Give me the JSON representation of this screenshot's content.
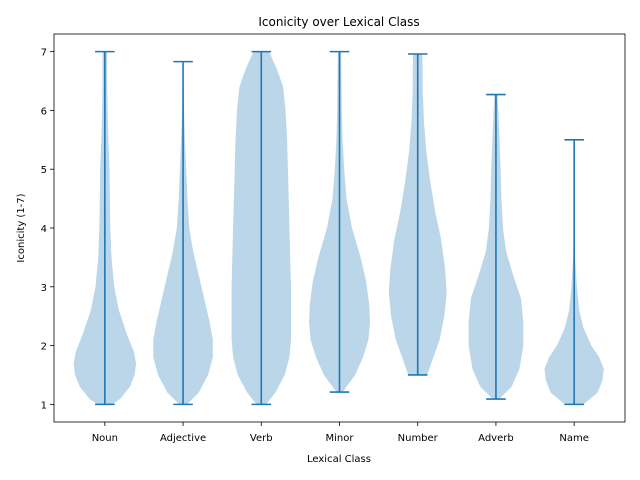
{
  "chart_data": {
    "type": "violin",
    "title": "Iconicity over Lexical Class",
    "xlabel": "Lexical Class",
    "ylabel": "Iconicity (1-7)",
    "ylim": [
      0.7,
      7.3
    ],
    "yticks": [
      1,
      2,
      3,
      4,
      5,
      6,
      7
    ],
    "categories": [
      "Noun",
      "Adjective",
      "Verb",
      "Minor",
      "Number",
      "Adverb",
      "Name"
    ],
    "violin_color": "#b7d4e8",
    "line_color": "#1f77b4",
    "grid": false,
    "series": [
      {
        "category": "Noun",
        "min": 1.0,
        "max": 7.0,
        "profile": [
          [
            1.0,
            0.1
          ],
          [
            1.1,
            0.2
          ],
          [
            1.3,
            0.32
          ],
          [
            1.5,
            0.38
          ],
          [
            1.7,
            0.4
          ],
          [
            1.9,
            0.37
          ],
          [
            2.2,
            0.28
          ],
          [
            2.6,
            0.18
          ],
          [
            3.0,
            0.12
          ],
          [
            3.5,
            0.085
          ],
          [
            4.0,
            0.07
          ],
          [
            4.5,
            0.065
          ],
          [
            5.0,
            0.06
          ],
          [
            5.5,
            0.045
          ],
          [
            6.0,
            0.035
          ],
          [
            6.5,
            0.03
          ],
          [
            7.0,
            0.03
          ]
        ]
      },
      {
        "category": "Adjective",
        "min": 1.0,
        "max": 6.83,
        "profile": [
          [
            1.0,
            0.05
          ],
          [
            1.2,
            0.2
          ],
          [
            1.5,
            0.32
          ],
          [
            1.8,
            0.38
          ],
          [
            2.1,
            0.38
          ],
          [
            2.4,
            0.34
          ],
          [
            2.8,
            0.27
          ],
          [
            3.2,
            0.2
          ],
          [
            3.6,
            0.13
          ],
          [
            4.0,
            0.08
          ],
          [
            4.5,
            0.055
          ],
          [
            5.0,
            0.04
          ],
          [
            5.5,
            0.025
          ],
          [
            6.0,
            0.012
          ],
          [
            6.5,
            0.006
          ],
          [
            6.83,
            0.003
          ]
        ]
      },
      {
        "category": "Verb",
        "min": 1.0,
        "max": 7.0,
        "profile": [
          [
            1.0,
            0.06
          ],
          [
            1.2,
            0.18
          ],
          [
            1.5,
            0.3
          ],
          [
            1.8,
            0.36
          ],
          [
            2.1,
            0.38
          ],
          [
            2.5,
            0.38
          ],
          [
            3.0,
            0.38
          ],
          [
            3.5,
            0.37
          ],
          [
            4.0,
            0.36
          ],
          [
            4.5,
            0.35
          ],
          [
            5.0,
            0.34
          ],
          [
            5.5,
            0.33
          ],
          [
            6.0,
            0.31
          ],
          [
            6.4,
            0.28
          ],
          [
            6.7,
            0.2
          ],
          [
            7.0,
            0.1
          ]
        ]
      },
      {
        "category": "Minor",
        "min": 1.21,
        "max": 7.0,
        "profile": [
          [
            1.21,
            0.04
          ],
          [
            1.5,
            0.2
          ],
          [
            1.8,
            0.3
          ],
          [
            2.1,
            0.37
          ],
          [
            2.4,
            0.39
          ],
          [
            2.7,
            0.38
          ],
          [
            3.1,
            0.34
          ],
          [
            3.5,
            0.27
          ],
          [
            4.0,
            0.16
          ],
          [
            4.5,
            0.09
          ],
          [
            5.0,
            0.06
          ],
          [
            5.5,
            0.04
          ],
          [
            6.0,
            0.03
          ],
          [
            6.5,
            0.025
          ],
          [
            7.0,
            0.02
          ]
        ]
      },
      {
        "category": "Number",
        "min": 1.5,
        "max": 6.96,
        "profile": [
          [
            1.5,
            0.12
          ],
          [
            1.8,
            0.2
          ],
          [
            2.1,
            0.28
          ],
          [
            2.5,
            0.34
          ],
          [
            2.9,
            0.37
          ],
          [
            3.3,
            0.35
          ],
          [
            3.8,
            0.3
          ],
          [
            4.3,
            0.22
          ],
          [
            4.8,
            0.16
          ],
          [
            5.3,
            0.11
          ],
          [
            5.8,
            0.08
          ],
          [
            6.3,
            0.065
          ],
          [
            6.96,
            0.06
          ]
        ]
      },
      {
        "category": "Adverb",
        "min": 1.09,
        "max": 6.27,
        "profile": [
          [
            1.09,
            0.04
          ],
          [
            1.3,
            0.2
          ],
          [
            1.6,
            0.3
          ],
          [
            2.0,
            0.35
          ],
          [
            2.4,
            0.35
          ],
          [
            2.8,
            0.32
          ],
          [
            3.2,
            0.22
          ],
          [
            3.6,
            0.13
          ],
          [
            4.0,
            0.09
          ],
          [
            4.5,
            0.07
          ],
          [
            5.0,
            0.06
          ],
          [
            5.5,
            0.045
          ],
          [
            6.0,
            0.03
          ],
          [
            6.27,
            0.02
          ]
        ]
      },
      {
        "category": "Name",
        "min": 1.0,
        "max": 5.5,
        "profile": [
          [
            1.0,
            0.12
          ],
          [
            1.2,
            0.3
          ],
          [
            1.4,
            0.36
          ],
          [
            1.6,
            0.38
          ],
          [
            1.8,
            0.32
          ],
          [
            2.0,
            0.22
          ],
          [
            2.3,
            0.12
          ],
          [
            2.6,
            0.065
          ],
          [
            3.0,
            0.035
          ],
          [
            3.5,
            0.012
          ],
          [
            4.0,
            0.004
          ],
          [
            5.5,
            0.0
          ]
        ]
      }
    ]
  }
}
